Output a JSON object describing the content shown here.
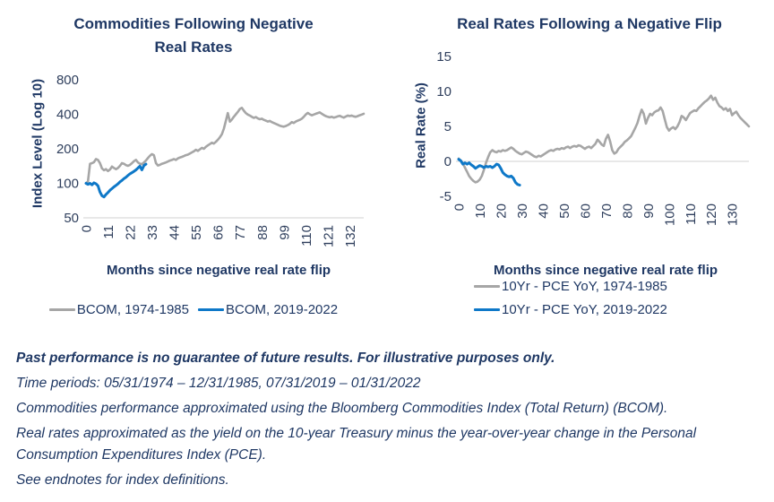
{
  "colors": {
    "navy": "#1f3864",
    "tick_text": "#2e3e5c",
    "gridline": "#d9d9d9",
    "gray_series": "#a6a6a6",
    "blue_series": "#0e78c8"
  },
  "chart_data": [
    {
      "type": "line",
      "title": "Commodities Following Negative Real Rates",
      "xlabel": "Months since negative real rate flip",
      "ylabel": "Index Level (Log 10)",
      "yscale": "log",
      "ylim": [
        50,
        800
      ],
      "yticks": [
        800,
        400,
        200,
        100,
        50
      ],
      "xlim": [
        0,
        139
      ],
      "xticks": [
        0,
        11,
        22,
        33,
        44,
        55,
        66,
        77,
        88,
        99,
        110,
        121,
        132
      ],
      "x_start": 0,
      "x_step": 1,
      "grid": "off",
      "legend_position": "bottom-center-inline",
      "axis_line_value": 50,
      "axis_line_color": "#d9d9d9",
      "series": [
        {
          "name": "BCOM, 1974-1985",
          "color": "#a6a6a6",
          "width": 2.6,
          "values": [
            100,
            104,
            148,
            150,
            153,
            163,
            160,
            150,
            135,
            130,
            133,
            128,
            132,
            140,
            136,
            133,
            136,
            142,
            150,
            148,
            144,
            142,
            145,
            150,
            156,
            160,
            152,
            148,
            147,
            152,
            158,
            166,
            174,
            180,
            176,
            150,
            143,
            145,
            148,
            150,
            152,
            155,
            158,
            160,
            163,
            160,
            165,
            168,
            170,
            173,
            176,
            178,
            182,
            186,
            190,
            196,
            192,
            198,
            204,
            200,
            208,
            214,
            220,
            226,
            222,
            230,
            240,
            252,
            268,
            300,
            350,
            410,
            345,
            360,
            380,
            400,
            420,
            445,
            455,
            430,
            410,
            398,
            390,
            380,
            372,
            378,
            368,
            362,
            366,
            358,
            352,
            346,
            350,
            342,
            336,
            330,
            324,
            318,
            314,
            312,
            316,
            322,
            330,
            342,
            336,
            346,
            352,
            358,
            366,
            380,
            398,
            412,
            400,
            392,
            398,
            404,
            410,
            416,
            404,
            394,
            386,
            380,
            376,
            380,
            374,
            378,
            384,
            388,
            380,
            374,
            382,
            390,
            386,
            390,
            384,
            380,
            386,
            392,
            398,
            404
          ]
        },
        {
          "name": "BCOM, 2019-2022",
          "color": "#0e78c8",
          "width": 3,
          "values": [
            100,
            98,
            100,
            97,
            101,
            99,
            95,
            84,
            78,
            76,
            80,
            83,
            87,
            90,
            93,
            96,
            99,
            103,
            106,
            110,
            113,
            117,
            121,
            124,
            127,
            131,
            136,
            141,
            131,
            143,
            147
          ]
        }
      ]
    },
    {
      "type": "line",
      "title": "Real Rates Following a Negative Flip",
      "xlabel": "Months since negative real rate flip",
      "ylabel": "Real Rate (%)",
      "yscale": "linear",
      "ylim": [
        -5,
        15
      ],
      "yticks": [
        15,
        10,
        5,
        0,
        -5
      ],
      "xlim": [
        0,
        138
      ],
      "xticks": [
        0,
        10,
        20,
        30,
        40,
        50,
        60,
        70,
        80,
        90,
        100,
        110,
        120,
        130
      ],
      "x_start": 0,
      "x_step": 1,
      "grid": "off",
      "legend_position": "bottom-left-stacked",
      "axis_line_value": 0,
      "axis_line_color": "#d9d9d9",
      "series": [
        {
          "name": "10Yr - PCE YoY, 1974-1985",
          "color": "#a6a6a6",
          "width": 2.6,
          "values": [
            0.4,
            0.1,
            -0.3,
            -0.9,
            -1.5,
            -2.1,
            -2.5,
            -2.8,
            -3.0,
            -2.9,
            -2.6,
            -2.1,
            -1.2,
            -0.2,
            0.6,
            1.3,
            1.6,
            1.4,
            1.3,
            1.5,
            1.4,
            1.6,
            1.5,
            1.6,
            1.8,
            2.0,
            1.8,
            1.5,
            1.3,
            1.1,
            1.0,
            1.2,
            1.4,
            1.3,
            1.1,
            0.9,
            0.7,
            0.6,
            0.8,
            0.7,
            0.9,
            1.1,
            1.3,
            1.5,
            1.6,
            1.5,
            1.7,
            1.8,
            1.7,
            1.9,
            1.8,
            2.0,
            2.1,
            1.9,
            2.1,
            2.2,
            2.1,
            2.3,
            2.2,
            2.0,
            1.8,
            2.0,
            2.1,
            1.9,
            2.2,
            2.5,
            3.1,
            2.8,
            2.4,
            2.2,
            3.2,
            3.8,
            2.9,
            1.6,
            1.1,
            1.3,
            1.8,
            2.1,
            2.4,
            2.8,
            3.0,
            3.3,
            3.6,
            4.2,
            4.8,
            5.5,
            6.5,
            7.4,
            6.8,
            5.4,
            6.2,
            6.8,
            6.6,
            7.0,
            7.2,
            7.3,
            7.7,
            7.2,
            6.0,
            4.9,
            4.4,
            4.7,
            4.9,
            4.6,
            5.0,
            5.6,
            6.5,
            6.3,
            5.9,
            6.4,
            6.9,
            7.1,
            7.3,
            7.2,
            7.6,
            7.9,
            8.2,
            8.5,
            8.7,
            9.0,
            9.4,
            8.8,
            9.1,
            8.4,
            7.9,
            7.7,
            7.4,
            7.6,
            7.2,
            7.5,
            6.6,
            6.9,
            7.1,
            6.6,
            6.2,
            5.9,
            5.6,
            5.3,
            5.0
          ]
        },
        {
          "name": "10Yr - PCE YoY, 2019-2022",
          "color": "#0e78c8",
          "width": 3,
          "values": [
            0.3,
            0.1,
            -0.4,
            -0.2,
            -0.4,
            -0.2,
            -0.5,
            -0.7,
            -1.0,
            -0.8,
            -0.6,
            -0.7,
            -0.9,
            -0.7,
            -0.8,
            -0.7,
            -0.9,
            -0.7,
            -0.4,
            -0.5,
            -1.0,
            -1.6,
            -1.9,
            -2.1,
            -2.2,
            -2.1,
            -2.4,
            -3.0,
            -3.3,
            -3.4
          ]
        }
      ]
    }
  ],
  "footnotes": {
    "lines": [
      {
        "text": "Past performance is no guarantee of future results. For illustrative purposes only.",
        "emphasis": "bold-italic"
      },
      {
        "text": "Time periods: 05/31/1974 – 12/31/1985, 07/31/2019 – 01/31/2022",
        "emphasis": "italic"
      },
      {
        "text": "Commodities performance approximated using the Bloomberg Commodities Index (Total Return) (BCOM).",
        "emphasis": "italic"
      },
      {
        "text": "Real rates approximated as the yield on the 10-year Treasury minus the year-over-year change in the Personal Consumption Expenditures Index (PCE).",
        "emphasis": "italic"
      },
      {
        "text": "See endnotes for index definitions.",
        "emphasis": "italic"
      }
    ]
  }
}
